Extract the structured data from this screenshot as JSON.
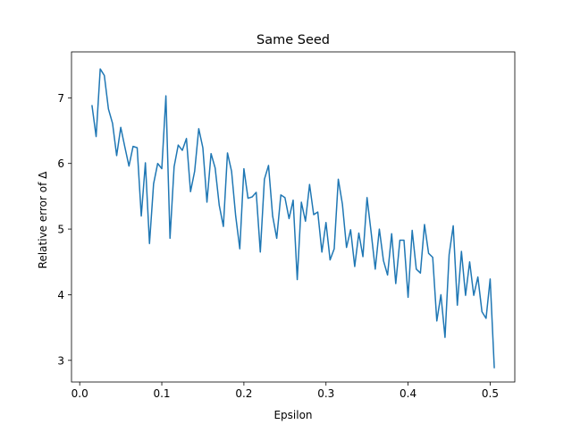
{
  "chart_data": {
    "type": "line",
    "title": "Same Seed",
    "xlabel": "Epsilon",
    "ylabel": "Relative error of Δ",
    "xlim": [
      -0.01,
      0.53
    ],
    "ylim": [
      2.67,
      7.7
    ],
    "xticks": [
      0.0,
      0.1,
      0.2,
      0.3,
      0.4,
      0.5
    ],
    "xtick_labels": [
      "0.0",
      "0.1",
      "0.2",
      "0.3",
      "0.4",
      "0.5"
    ],
    "yticks": [
      3,
      4,
      5,
      6,
      7
    ],
    "ytick_labels": [
      "3",
      "4",
      "5",
      "6",
      "7"
    ],
    "grid": false,
    "legend": "none",
    "series": [
      {
        "color": "#1f77b4",
        "x": [
          0.015,
          0.02,
          0.025,
          0.03,
          0.035,
          0.04,
          0.045,
          0.05,
          0.055,
          0.06,
          0.065,
          0.07,
          0.075,
          0.08,
          0.085,
          0.09,
          0.095,
          0.1,
          0.105,
          0.11,
          0.115,
          0.12,
          0.125,
          0.13,
          0.135,
          0.14,
          0.145,
          0.15,
          0.155,
          0.16,
          0.165,
          0.17,
          0.175,
          0.18,
          0.185,
          0.19,
          0.195,
          0.2,
          0.205,
          0.21,
          0.215,
          0.22,
          0.225,
          0.23,
          0.235,
          0.24,
          0.245,
          0.25,
          0.255,
          0.26,
          0.265,
          0.27,
          0.275,
          0.28,
          0.285,
          0.29,
          0.295,
          0.3,
          0.305,
          0.31,
          0.315,
          0.32,
          0.325,
          0.33,
          0.335,
          0.34,
          0.345,
          0.35,
          0.355,
          0.36,
          0.365,
          0.37,
          0.375,
          0.38,
          0.385,
          0.39,
          0.395,
          0.4,
          0.405,
          0.41,
          0.415,
          0.42,
          0.425,
          0.43,
          0.435,
          0.44,
          0.445,
          0.45,
          0.455,
          0.46,
          0.465,
          0.47,
          0.475,
          0.48,
          0.485,
          0.49,
          0.495,
          0.5,
          0.505
        ],
        "y": [
          6.88,
          6.41,
          7.44,
          7.34,
          6.83,
          6.61,
          6.12,
          6.55,
          6.25,
          5.96,
          6.26,
          6.24,
          5.2,
          6.01,
          4.78,
          5.69,
          6.0,
          5.92,
          7.03,
          4.86,
          5.95,
          6.28,
          6.2,
          6.38,
          5.57,
          5.88,
          6.53,
          6.24,
          5.41,
          6.15,
          5.93,
          5.36,
          5.04,
          6.16,
          5.88,
          5.2,
          4.7,
          5.92,
          5.47,
          5.49,
          5.56,
          4.65,
          5.76,
          5.97,
          5.2,
          4.86,
          5.52,
          5.48,
          5.16,
          5.44,
          4.23,
          5.41,
          5.12,
          5.68,
          5.22,
          5.26,
          4.65,
          5.1,
          4.53,
          4.7,
          5.76,
          5.38,
          4.72,
          4.99,
          4.43,
          4.94,
          4.58,
          5.48,
          4.95,
          4.39,
          5.0,
          4.52,
          4.3,
          4.93,
          4.17,
          4.83,
          4.83,
          3.96,
          4.98,
          4.39,
          4.33,
          5.07,
          4.63,
          4.57,
          3.6,
          4.0,
          3.35,
          4.61,
          5.05,
          3.84,
          4.66,
          3.99,
          4.5,
          3.99,
          4.27,
          3.74,
          3.64,
          4.24,
          2.89
        ]
      }
    ]
  }
}
